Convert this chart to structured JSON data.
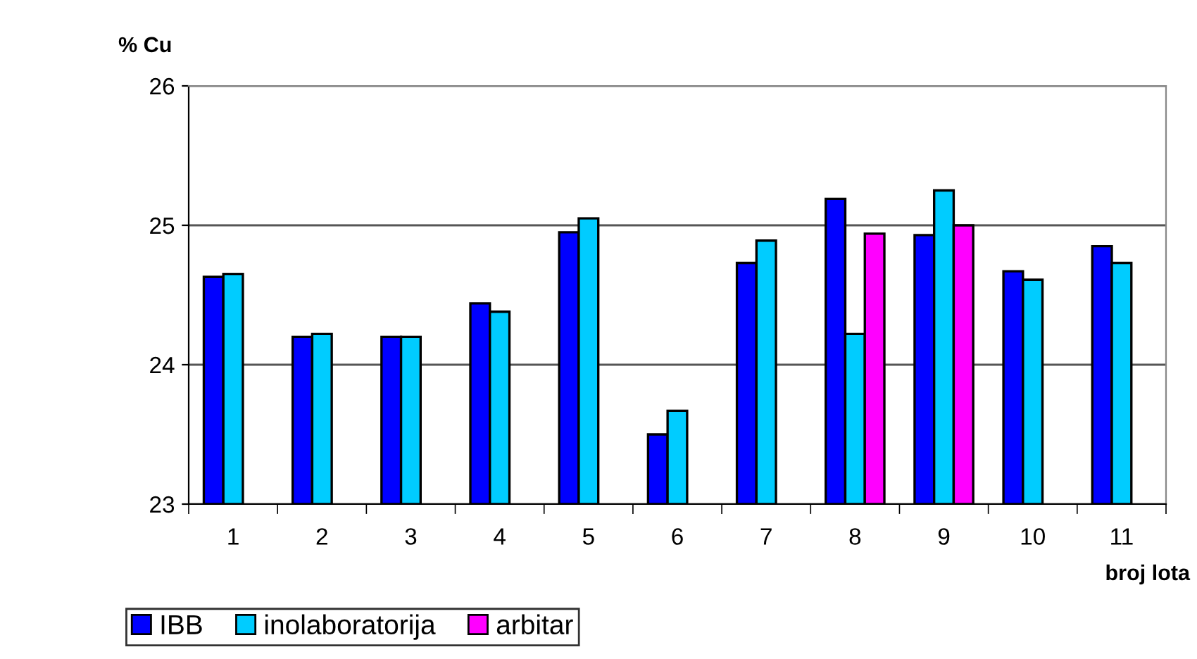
{
  "chart_data": {
    "type": "bar",
    "ylabel": "% Cu",
    "xlabel": "broj lota",
    "categories": [
      "1",
      "2",
      "3",
      "4",
      "5",
      "6",
      "7",
      "8",
      "9",
      "10",
      "11"
    ],
    "series": [
      {
        "name": "IBB",
        "color": "#0000ff",
        "values": [
          24.63,
          24.2,
          24.2,
          24.44,
          24.95,
          23.5,
          24.73,
          25.19,
          24.93,
          24.67,
          24.85
        ]
      },
      {
        "name": "inolaboratorija",
        "color": "#00ccff",
        "values": [
          24.65,
          24.22,
          24.2,
          24.38,
          25.05,
          23.67,
          24.89,
          24.22,
          25.25,
          24.61,
          24.73
        ]
      },
      {
        "name": "arbitar",
        "color": "#ff00ff",
        "values": [
          null,
          null,
          null,
          null,
          null,
          null,
          null,
          24.94,
          25.0,
          null,
          null
        ]
      }
    ],
    "ylim": [
      23,
      26
    ],
    "yticks": [
      23,
      24,
      25,
      26
    ],
    "grid": "y",
    "legend": "bottom"
  }
}
